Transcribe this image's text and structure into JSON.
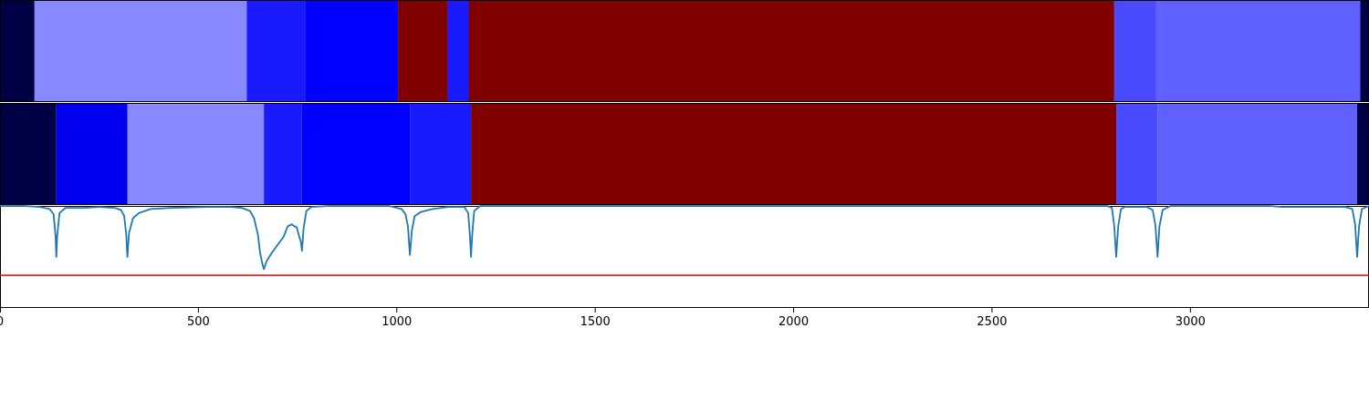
{
  "chart_data": {
    "type": "heatmap",
    "x_range": [
      0,
      3450
    ],
    "x_ticks": [
      0,
      500,
      1000,
      1500,
      2000,
      2500,
      3000
    ],
    "x_tick_labels": [
      "0",
      "500",
      "1000",
      "1500",
      "2000",
      "2500",
      "3000"
    ],
    "grid": false,
    "segment_tracks": [
      {
        "segments": [
          {
            "start": 0,
            "end": 87,
            "color": "#000044"
          },
          {
            "start": 87,
            "end": 622,
            "color": "#8888ff"
          },
          {
            "start": 622,
            "end": 769,
            "color": "#1a1aff"
          },
          {
            "start": 769,
            "end": 1003,
            "color": "#0000ff"
          },
          {
            "start": 1003,
            "end": 1128,
            "color": "#800000"
          },
          {
            "start": 1128,
            "end": 1181,
            "color": "#1a1aff"
          },
          {
            "start": 1181,
            "end": 2808,
            "color": "#800000"
          },
          {
            "start": 2808,
            "end": 2913,
            "color": "#4a4aff"
          },
          {
            "start": 2913,
            "end": 3428,
            "color": "#6060ff"
          },
          {
            "start": 3428,
            "end": 3450,
            "color": "#000044"
          }
        ]
      },
      {
        "segments": [
          {
            "start": 0,
            "end": 142,
            "color": "#000044"
          },
          {
            "start": 142,
            "end": 321,
            "color": "#0000ee"
          },
          {
            "start": 321,
            "end": 665,
            "color": "#8888ff"
          },
          {
            "start": 665,
            "end": 761,
            "color": "#1a1aff"
          },
          {
            "start": 761,
            "end": 1033,
            "color": "#0000ff"
          },
          {
            "start": 1033,
            "end": 1187,
            "color": "#1a1aff"
          },
          {
            "start": 1187,
            "end": 2813,
            "color": "#800000"
          },
          {
            "start": 2813,
            "end": 2917,
            "color": "#4a4aff"
          },
          {
            "start": 2917,
            "end": 3420,
            "color": "#6060ff"
          },
          {
            "start": 3420,
            "end": 3450,
            "color": "#000044"
          }
        ]
      }
    ],
    "line_panel": {
      "y_range": [
        0,
        1
      ],
      "threshold": {
        "value": 0.32,
        "color": "#ff0000"
      },
      "series_color": "#1f77b4",
      "points": [
        [
          0,
          1.0
        ],
        [
          60,
          1.0
        ],
        [
          100,
          0.99
        ],
        [
          125,
          0.97
        ],
        [
          135,
          0.92
        ],
        [
          140,
          0.7
        ],
        [
          142,
          0.5
        ],
        [
          144,
          0.7
        ],
        [
          150,
          0.93
        ],
        [
          165,
          0.98
        ],
        [
          210,
          0.98
        ],
        [
          250,
          0.99
        ],
        [
          290,
          0.98
        ],
        [
          305,
          0.96
        ],
        [
          313,
          0.9
        ],
        [
          318,
          0.72
        ],
        [
          321,
          0.5
        ],
        [
          325,
          0.73
        ],
        [
          335,
          0.88
        ],
        [
          350,
          0.93
        ],
        [
          380,
          0.97
        ],
        [
          430,
          0.98
        ],
        [
          520,
          0.99
        ],
        [
          580,
          0.99
        ],
        [
          610,
          0.98
        ],
        [
          630,
          0.95
        ],
        [
          640,
          0.88
        ],
        [
          650,
          0.72
        ],
        [
          655,
          0.55
        ],
        [
          660,
          0.45
        ],
        [
          665,
          0.38
        ],
        [
          672,
          0.46
        ],
        [
          685,
          0.54
        ],
        [
          700,
          0.62
        ],
        [
          715,
          0.7
        ],
        [
          725,
          0.8
        ],
        [
          735,
          0.82
        ],
        [
          742,
          0.8
        ],
        [
          748,
          0.79
        ],
        [
          754,
          0.7
        ],
        [
          758,
          0.65
        ],
        [
          761,
          0.56
        ],
        [
          765,
          0.78
        ],
        [
          772,
          0.95
        ],
        [
          785,
          0.99
        ],
        [
          830,
          1.0
        ],
        [
          980,
          1.0
        ],
        [
          1012,
          0.97
        ],
        [
          1022,
          0.92
        ],
        [
          1028,
          0.8
        ],
        [
          1033,
          0.52
        ],
        [
          1038,
          0.76
        ],
        [
          1045,
          0.9
        ],
        [
          1060,
          0.94
        ],
        [
          1090,
          0.97
        ],
        [
          1130,
          0.99
        ],
        [
          1170,
          0.99
        ],
        [
          1180,
          0.93
        ],
        [
          1184,
          0.72
        ],
        [
          1187,
          0.5
        ],
        [
          1190,
          0.72
        ],
        [
          1195,
          0.95
        ],
        [
          1210,
          1.0
        ],
        [
          2790,
          1.0
        ],
        [
          2802,
          0.98
        ],
        [
          2808,
          0.8
        ],
        [
          2813,
          0.5
        ],
        [
          2818,
          0.8
        ],
        [
          2825,
          0.97
        ],
        [
          2835,
          0.99
        ],
        [
          2890,
          0.99
        ],
        [
          2905,
          0.96
        ],
        [
          2912,
          0.8
        ],
        [
          2917,
          0.5
        ],
        [
          2922,
          0.8
        ],
        [
          2930,
          0.96
        ],
        [
          2950,
          1.0
        ],
        [
          3200,
          1.0
        ],
        [
          3230,
          0.99
        ],
        [
          3330,
          0.99
        ],
        [
          3390,
          0.99
        ],
        [
          3408,
          0.97
        ],
        [
          3415,
          0.82
        ],
        [
          3420,
          0.5
        ],
        [
          3425,
          0.8
        ],
        [
          3432,
          0.97
        ],
        [
          3450,
          1.0
        ]
      ]
    }
  }
}
